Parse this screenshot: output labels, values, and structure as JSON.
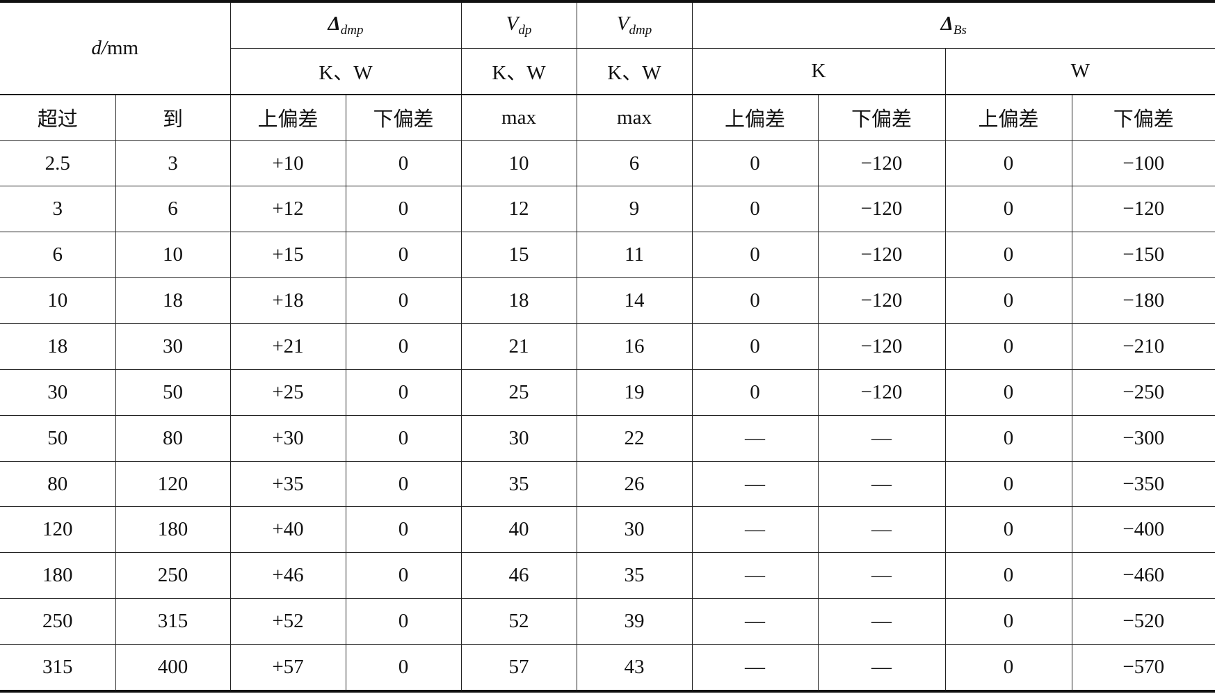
{
  "header": {
    "d_label": "d/mm",
    "delta_dmp": {
      "symbol": "Δ",
      "sub": "dmp"
    },
    "v_dp": {
      "symbol": "V",
      "sub": "dp"
    },
    "v_dmp": {
      "symbol": "V",
      "sub": "dmp"
    },
    "delta_bs": {
      "symbol": "Δ",
      "sub": "Bs"
    },
    "kw": "K、W",
    "k": "K",
    "w": "W",
    "over": "超过",
    "to": "到",
    "upper": "上偏差",
    "lower": "下偏差",
    "max": "max"
  },
  "rows": [
    [
      "2.5",
      "3",
      "+10",
      "0",
      "10",
      "6",
      "0",
      "−120",
      "0",
      "−100"
    ],
    [
      "3",
      "6",
      "+12",
      "0",
      "12",
      "9",
      "0",
      "−120",
      "0",
      "−120"
    ],
    [
      "6",
      "10",
      "+15",
      "0",
      "15",
      "11",
      "0",
      "−120",
      "0",
      "−150"
    ],
    [
      "10",
      "18",
      "+18",
      "0",
      "18",
      "14",
      "0",
      "−120",
      "0",
      "−180"
    ],
    [
      "18",
      "30",
      "+21",
      "0",
      "21",
      "16",
      "0",
      "−120",
      "0",
      "−210"
    ],
    [
      "30",
      "50",
      "+25",
      "0",
      "25",
      "19",
      "0",
      "−120",
      "0",
      "−250"
    ],
    [
      "50",
      "80",
      "+30",
      "0",
      "30",
      "22",
      "—",
      "—",
      "0",
      "−300"
    ],
    [
      "80",
      "120",
      "+35",
      "0",
      "35",
      "26",
      "—",
      "—",
      "0",
      "−350"
    ],
    [
      "120",
      "180",
      "+40",
      "0",
      "40",
      "30",
      "—",
      "—",
      "0",
      "−400"
    ],
    [
      "180",
      "250",
      "+46",
      "0",
      "46",
      "35",
      "—",
      "—",
      "0",
      "−460"
    ],
    [
      "250",
      "315",
      "+52",
      "0",
      "52",
      "39",
      "—",
      "—",
      "0",
      "−520"
    ],
    [
      "315",
      "400",
      "+57",
      "0",
      "57",
      "43",
      "—",
      "—",
      "0",
      "−570"
    ]
  ]
}
